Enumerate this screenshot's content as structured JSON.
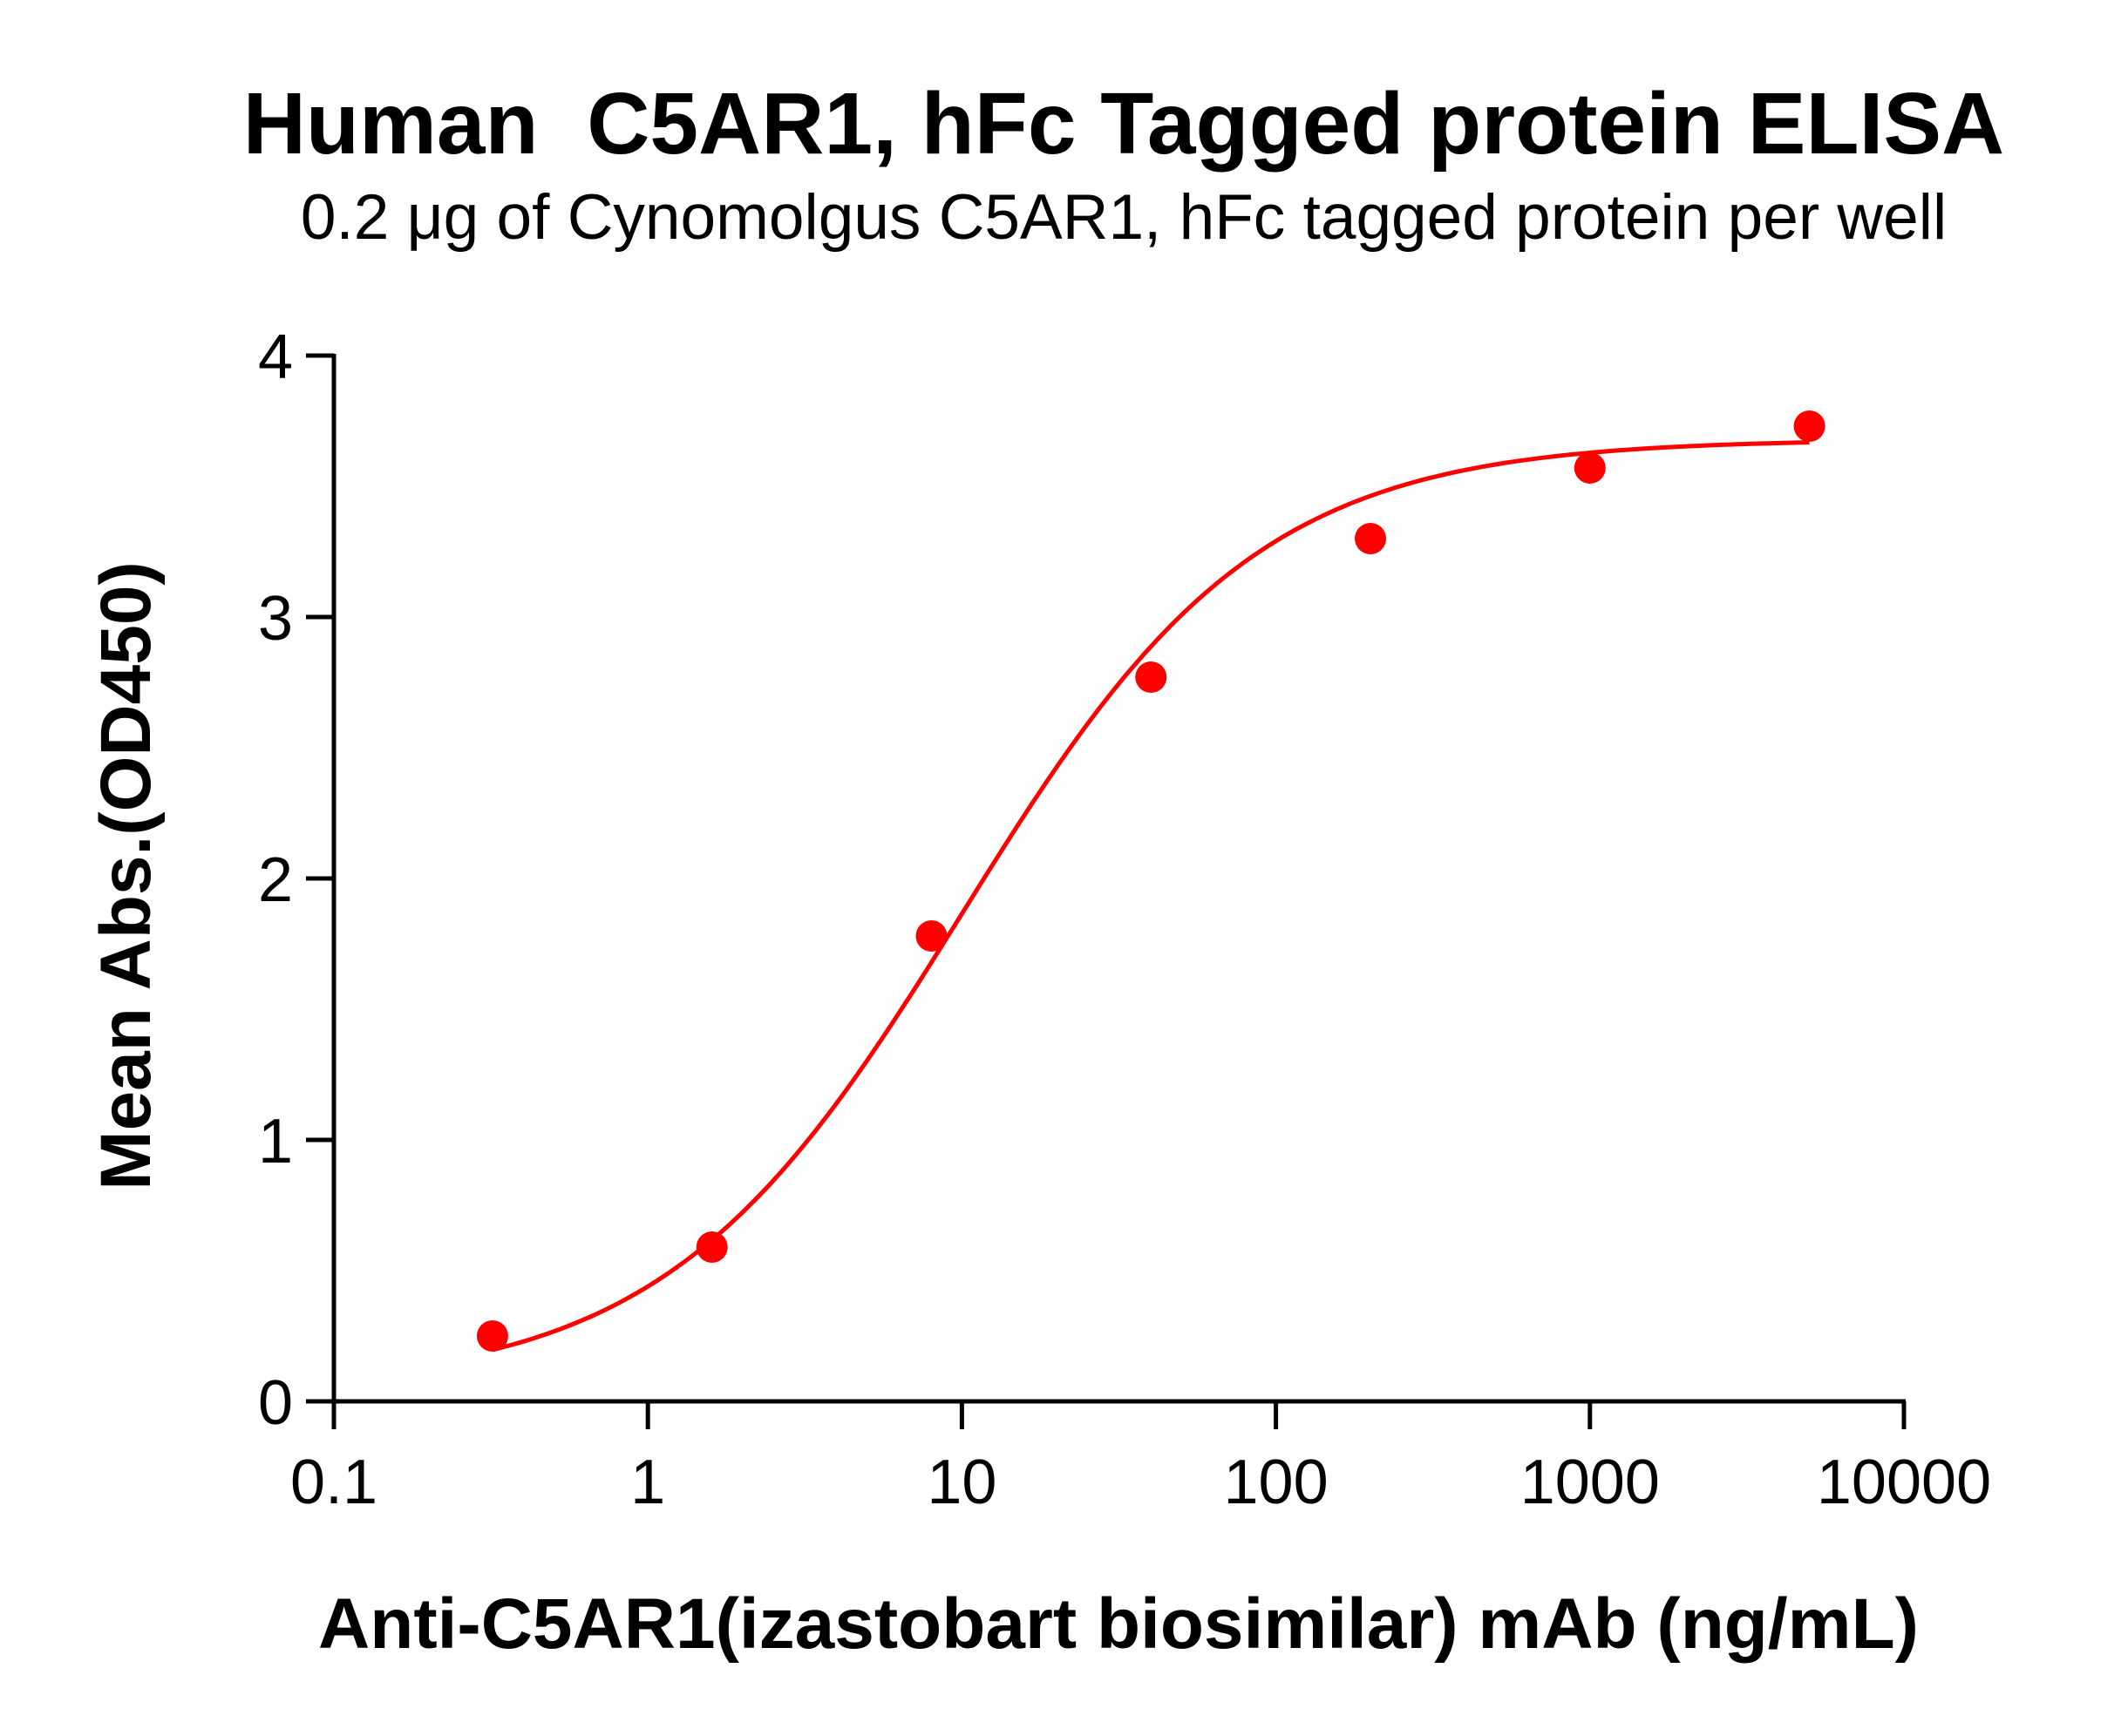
{
  "title": "Human  C5AR1, hFc Tagged protein ELISA",
  "subtitle": "0.2 μg of Cynomolgus C5AR1, hFc tagged protein per well",
  "colors": {
    "series": "#ff0000",
    "axis": "#000000"
  },
  "chart_data": {
    "type": "scatter",
    "title": "Human  C5AR1, hFc Tagged protein ELISA",
    "subtitle": "0.2 μg of Cynomolgus C5AR1, hFc tagged protein per well",
    "xlabel": "Anti-C5AR1(izastobart biosimilar) mAb (ng/mL)",
    "ylabel": "Mean Abs.(OD450)",
    "xscale": "log",
    "xlim": [
      0.1,
      10000
    ],
    "ylim": [
      0,
      4
    ],
    "xticks": [
      0.1,
      1,
      10,
      100,
      1000,
      10000
    ],
    "xtick_labels": [
      "0.1",
      "1",
      "10",
      "100",
      "1000",
      "10000"
    ],
    "yticks": [
      0,
      1,
      2,
      3,
      4
    ],
    "ytick_labels": [
      "0",
      "1",
      "2",
      "3",
      "4"
    ],
    "grid": false,
    "legend": null,
    "series": [
      {
        "name": "Anti-C5AR1 mAb",
        "color": "#ff0000",
        "marker": "circle",
        "x": [
          0.32,
          1.6,
          8,
          40,
          200,
          1000,
          5000
        ],
        "y": [
          0.25,
          0.59,
          1.78,
          2.77,
          3.3,
          3.57,
          3.73
        ],
        "fit": {
          "model": "4PL",
          "bottom": 0.05,
          "top": 3.68,
          "ec50": 10,
          "hill": 0.92,
          "x_range": [
            0.32,
            5000
          ]
        }
      }
    ]
  }
}
